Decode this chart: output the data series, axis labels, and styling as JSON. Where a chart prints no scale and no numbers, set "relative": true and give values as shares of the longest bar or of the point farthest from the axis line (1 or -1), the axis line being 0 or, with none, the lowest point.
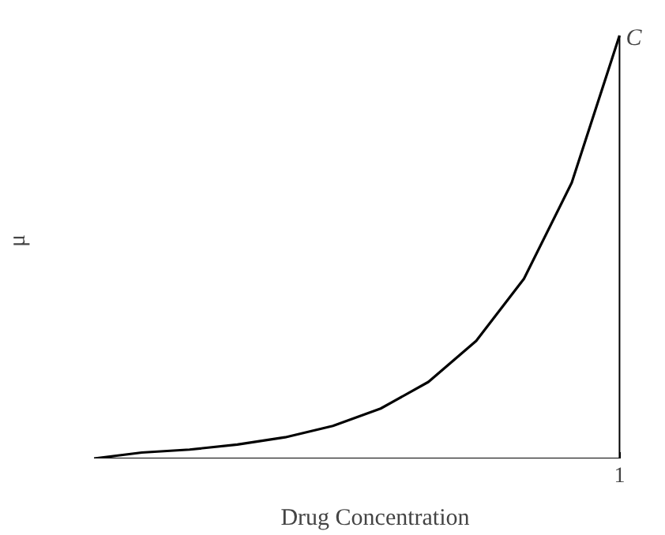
{
  "chart_data": {
    "type": "line",
    "relative": true,
    "xlabel": "Drug Concentration",
    "ylabel": "μ",
    "categories": [
      null,
      null,
      null,
      null,
      null,
      null,
      null,
      null,
      null,
      null,
      null,
      null
    ],
    "series": [
      {
        "color": "#000000",
        "values": [
          0,
          0.014,
          0.021,
          0.033,
          0.05,
          0.077,
          0.118,
          0.181,
          0.278,
          0.425,
          0.652,
          1
        ]
      }
    ],
    "annotations": [
      "C",
      "1"
    ]
  }
}
